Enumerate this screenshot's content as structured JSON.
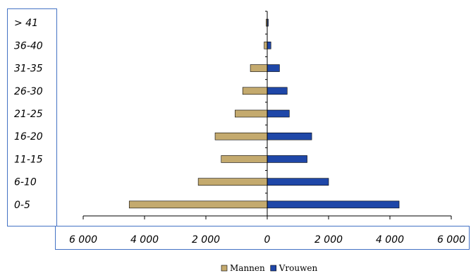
{
  "chart_data": {
    "type": "bar",
    "orientation": "horizontal",
    "layout": "population-pyramid",
    "categories": [
      "0-5",
      "6-10",
      "11-15",
      "16-20",
      "21-25",
      "26-30",
      "31-35",
      "36-40",
      "> 41"
    ],
    "series": [
      {
        "name": "Mannen",
        "color": "#C4AA6E",
        "side": "left",
        "values": [
          4500,
          2250,
          1500,
          1700,
          1050,
          800,
          550,
          100,
          10
        ]
      },
      {
        "name": "Vrouwen",
        "color": "#1F47A8",
        "side": "right",
        "values": [
          4300,
          2000,
          1300,
          1450,
          720,
          650,
          400,
          120,
          30
        ]
      }
    ],
    "xlim": [
      -6000,
      6000
    ],
    "x_ticks": [
      -6000,
      -4000,
      -2000,
      0,
      2000,
      4000,
      6000
    ],
    "x_tick_labels": [
      "6 000",
      "4 000",
      "2 000",
      "0",
      "2 000",
      "4 000",
      "6 000"
    ],
    "title": "",
    "xlabel": "",
    "ylabel": "",
    "grid": false,
    "legend": {
      "position": "bottom",
      "entries": [
        "Mannen",
        "Vrouwen"
      ]
    }
  }
}
